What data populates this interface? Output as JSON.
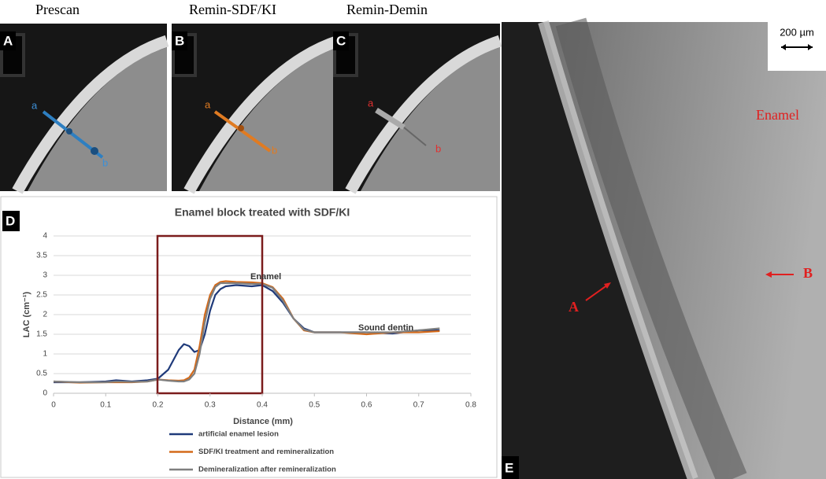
{
  "panels": {
    "A": {
      "label": "A",
      "title": "Prescan",
      "line_start": "a",
      "line_end": "b"
    },
    "B": {
      "label": "B",
      "title": "Remin-SDF/KI",
      "line_start": "a",
      "line_end": "b"
    },
    "C": {
      "label": "C",
      "title": "Remin-Demin",
      "line_start": "a",
      "line_end": "b"
    },
    "D": {
      "label": "D"
    },
    "E": {
      "label": "E",
      "scale_bar": "200 µm",
      "region_label": "Enamel",
      "arrow_a": "A",
      "arrow_b": "B"
    }
  },
  "chart_data": {
    "type": "line",
    "title": "Enamel block treated with SDF/KI",
    "x_label": "Distance (mm)",
    "y_label": "LAC (cm⁻¹)",
    "annotations": [
      "Enamel",
      "Sound dentin"
    ],
    "x": [
      0,
      0.05,
      0.1,
      0.12,
      0.15,
      0.18,
      0.2,
      0.22,
      0.24,
      0.25,
      0.26,
      0.27,
      0.28,
      0.29,
      0.3,
      0.31,
      0.32,
      0.33,
      0.35,
      0.38,
      0.4,
      0.42,
      0.44,
      0.46,
      0.48,
      0.5,
      0.55,
      0.6,
      0.65,
      0.7,
      0.74
    ],
    "series": [
      {
        "name": "artificial enamel lesion",
        "color": "#1f3a7a",
        "values": [
          0.28,
          0.28,
          0.3,
          0.33,
          0.3,
          0.33,
          0.37,
          0.6,
          1.1,
          1.25,
          1.2,
          1.05,
          1.1,
          1.5,
          2.1,
          2.5,
          2.65,
          2.72,
          2.75,
          2.72,
          2.75,
          2.6,
          2.3,
          1.9,
          1.65,
          1.55,
          1.55,
          1.55,
          1.52,
          1.6,
          1.6
        ]
      },
      {
        "name": "SDF/KI treatment and remineralization",
        "color": "#d46a1a",
        "values": [
          0.3,
          0.27,
          0.28,
          0.28,
          0.28,
          0.3,
          0.35,
          0.33,
          0.32,
          0.33,
          0.4,
          0.6,
          1.2,
          2.0,
          2.5,
          2.75,
          2.83,
          2.85,
          2.83,
          2.82,
          2.8,
          2.7,
          2.4,
          1.9,
          1.6,
          1.55,
          1.55,
          1.5,
          1.55,
          1.55,
          1.58
        ]
      },
      {
        "name": "Demineralization after remineralization",
        "color": "#7f7f7f",
        "values": [
          0.3,
          0.28,
          0.28,
          0.3,
          0.29,
          0.3,
          0.35,
          0.32,
          0.3,
          0.3,
          0.35,
          0.5,
          1.0,
          1.8,
          2.4,
          2.7,
          2.8,
          2.8,
          2.8,
          2.78,
          2.78,
          2.68,
          2.35,
          1.9,
          1.62,
          1.55,
          1.55,
          1.55,
          1.55,
          1.6,
          1.65
        ]
      }
    ],
    "xlim": [
      0,
      0.8
    ],
    "xticks": [
      0,
      0.1,
      0.2,
      0.3,
      0.4,
      0.5,
      0.6,
      0.7,
      0.8
    ],
    "ylim": [
      0,
      4
    ],
    "yticks": [
      0,
      0.5,
      1,
      1.5,
      2,
      2.5,
      3,
      3.5,
      4
    ],
    "grid": true
  }
}
